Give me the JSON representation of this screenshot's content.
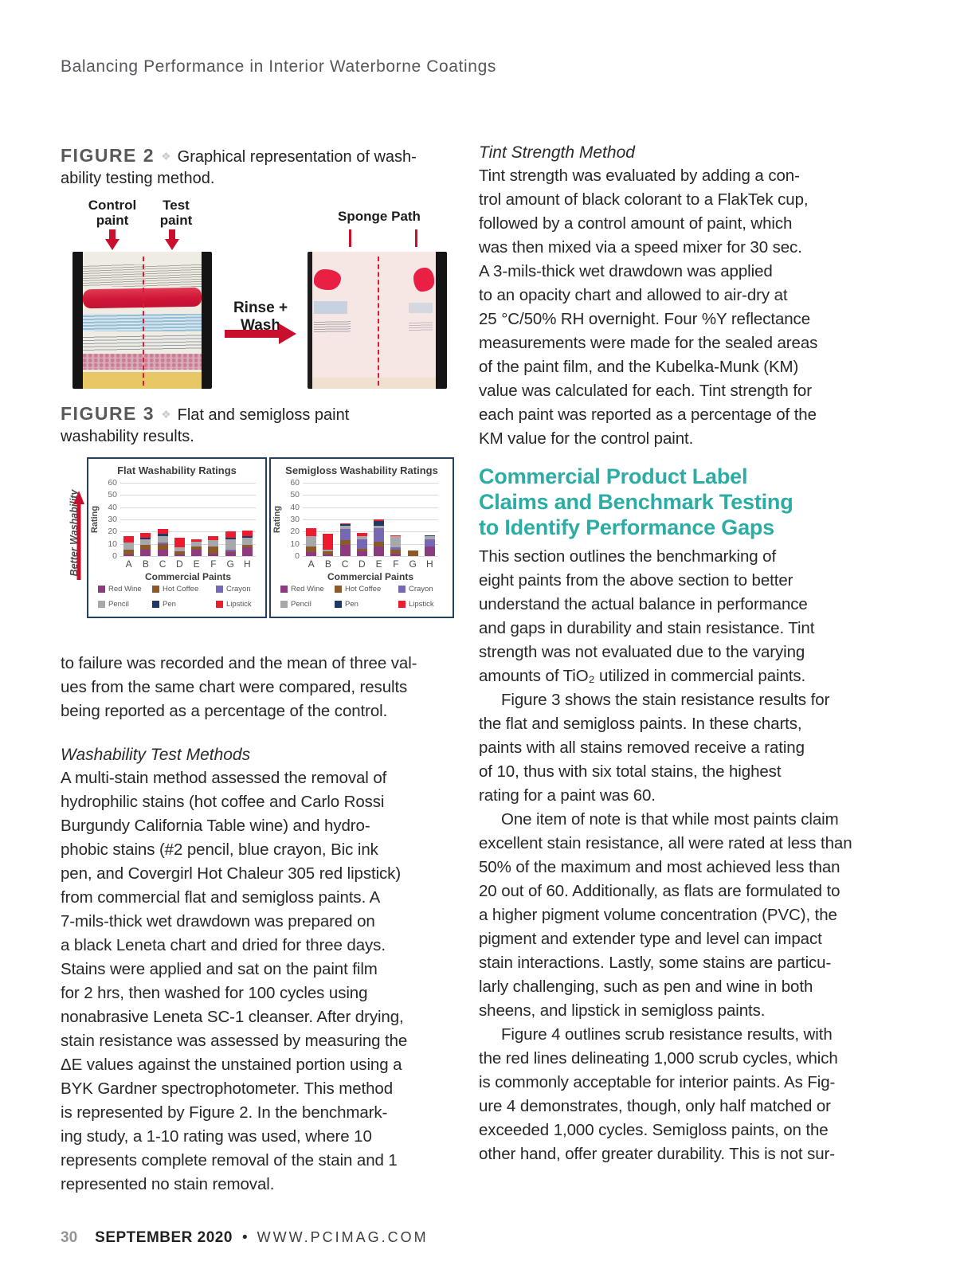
{
  "header": {
    "title": "Balancing Performance in Interior Waterborne Coatings"
  },
  "icons": {
    "diamond": "❖"
  },
  "colors": {
    "accent_red": "#C8102E",
    "teal_heading": "#2BACA4",
    "chart_border": "#24415E",
    "figure_label_gray": "#58595B"
  },
  "figure2": {
    "label": "FIGURE 2",
    "caption": "Graphical representation of wash-\nability testing method.",
    "control_label": "Control\npaint",
    "test_label": "Test\npaint",
    "sponge_label": "Sponge Path",
    "rinse_label": "Rinse + Wash"
  },
  "figure3": {
    "label": "FIGURE 3",
    "caption": "Flat and semigloss paint\nwashability results.",
    "better_washability": "Better Washability"
  },
  "chart_data": [
    {
      "type": "bar",
      "stacked": true,
      "title": "Flat Washability Ratings",
      "xlabel": "Commercial Paints",
      "ylabel": "Rating",
      "categories": [
        "A",
        "B",
        "C",
        "D",
        "E",
        "F",
        "G",
        "H"
      ],
      "ylim": [
        0,
        60
      ],
      "yticks": [
        0,
        10,
        20,
        30,
        40,
        50,
        60
      ],
      "grid": true,
      "legend_position": "bottom",
      "series": [
        {
          "name": "Red Wine",
          "color": "#8E3A80",
          "values": [
            1.5,
            5,
            5,
            1,
            5,
            2,
            3,
            7
          ]
        },
        {
          "name": "Hot Coffee",
          "color": "#8C5A28",
          "values": [
            3.5,
            4,
            5,
            3,
            3,
            6,
            1,
            2
          ]
        },
        {
          "name": "Crayon",
          "color": "#7668B2",
          "values": [
            0,
            0,
            1,
            0,
            0,
            0,
            1,
            0
          ]
        },
        {
          "name": "Pencil",
          "color": "#A6A8AB",
          "values": [
            6,
            5,
            5,
            3,
            3.5,
            5,
            9,
            6
          ]
        },
        {
          "name": "Pen",
          "color": "#1F3864",
          "values": [
            0,
            1,
            2,
            0,
            0,
            0,
            1,
            1
          ]
        },
        {
          "name": "Lipstick",
          "color": "#EC1C2E",
          "values": [
            5,
            4,
            4,
            8,
            2.5,
            3,
            5,
            5
          ]
        }
      ]
    },
    {
      "type": "bar",
      "stacked": true,
      "title": "Semigloss Washability Ratings",
      "xlabel": "Commercial Paints",
      "ylabel": "Rating",
      "categories": [
        "A",
        "B",
        "C",
        "D",
        "E",
        "F",
        "G",
        "H"
      ],
      "ylim": [
        0,
        60
      ],
      "yticks": [
        0,
        10,
        20,
        30,
        40,
        50,
        60
      ],
      "grid": true,
      "legend_position": "bottom",
      "series": [
        {
          "name": "Red Wine",
          "color": "#8E3A80",
          "values": [
            3,
            1,
            9,
            4,
            8,
            2,
            0,
            8
          ]
        },
        {
          "name": "Hot Coffee",
          "color": "#8C5A28",
          "values": [
            5,
            3,
            4,
            2,
            4,
            3,
            4.5,
            0
          ]
        },
        {
          "name": "Crayon",
          "color": "#7668B2",
          "values": [
            0,
            0,
            9,
            8,
            11,
            2,
            0,
            6
          ]
        },
        {
          "name": "Pencil",
          "color": "#A6A8AB",
          "values": [
            8,
            1,
            3,
            2,
            2,
            9,
            0,
            2
          ]
        },
        {
          "name": "Pen",
          "color": "#1F3864",
          "values": [
            0,
            0,
            1,
            0,
            4,
            0,
            0,
            1
          ]
        },
        {
          "name": "Lipstick",
          "color": "#EC1C2E",
          "values": [
            7,
            13,
            1,
            3,
            1,
            1,
            0,
            0
          ]
        }
      ]
    }
  ],
  "left_column": {
    "para_intro": "to failure was recorded and the mean of three val-\nues from the same chart were compared, results\nbeing reported as a percentage of the control.",
    "subhead": "Washability Test Methods",
    "para_methods": "A multi-stain method assessed the removal of\nhydrophilic stains (hot coffee and Carlo Rossi\nBurgundy California Table wine) and hydro-\nphobic stains (#2 pencil, blue crayon, Bic ink\npen, and Covergirl Hot Chaleur 305 red lipstick)\nfrom commercial flat and semigloss paints. A\n7-mils-thick wet drawdown was prepared on\na black Leneta chart and dried for three days.\nStains were applied and sat on the paint film\nfor 2 hrs, then washed for 100 cycles using\nnonabrasive Leneta SC-1 cleanser. After drying,\nstain resistance was assessed by measuring the\nΔE values against the unstained portion using a\nBYK Gardner spectrophotometer. This method\nis represented by Figure 2. In the benchmark-\ning study, a 1-10 rating was used, where 10\nrepresents complete removal of the stain and 1\nrepresented no stain removal."
  },
  "right_column": {
    "subhead": "Tint Strength Method",
    "para_tint": "Tint strength was evaluated by adding a con-\ntrol amount of black colorant to a FlakTek cup,\nfollowed by a control amount of paint, which\nwas then mixed via a speed mixer for 30 sec.\nA 3-mils-thick wet drawdown was applied\nto an opacity chart and allowed to air-dry at\n25 °C/50% RH overnight. Four %Y reflectance\nmeasurements were made for the sealed areas\nof the paint film, and the Kubelka-Munk (KM)\nvalue was calculated for each. Tint strength for\neach paint was reported as a percentage of the\nKM value for the control paint.",
    "teal_heading": "Commercial Product Label\nClaims and Benchmark Testing\nto Identify Performance Gaps",
    "para_claims": "This section outlines the benchmarking of\neight paints from the above section to better\nunderstand the actual balance in performance\nand gaps in durability and stain resistance. Tint\nstrength was not evaluated due to the varying\namounts of TiO₂ utilized in commercial paints.\n     Figure 3 shows the stain resistance results for\nthe flat and semigloss paints. In these charts,\npaints with all stains removed receive a rating\nof 10, thus with six total stains, the highest\nrating for a paint was 60.\n     One item of note is that while most paints claim\nexcellent stain resistance, all were rated at less than\n50% of the maximum and most achieved less than\n20 out of 60. Additionally, as flats are formulated to\na higher pigment volume concentration (PVC), the\npigment and extender type and level can impact\nstain interactions. Lastly, some stains are particu-\nlarly challenging, such as pen and wine in both\nsheens, and lipstick in semigloss paints.\n     Figure 4 outlines scrub resistance results, with\nthe red lines delineating 1,000 scrub cycles, which\nis commonly acceptable for interior paints. As Fig-\nure 4 demonstrates, though, only half matched or\nexceeded 1,000 cycles. Semigloss paints, on the\nother hand, offer greater durability. This is not sur-"
  },
  "footer": {
    "page_number": "30",
    "issue": "SEPTEMBER 2020",
    "bullet": "•",
    "website": "WWW.PCIMAG.COM"
  }
}
